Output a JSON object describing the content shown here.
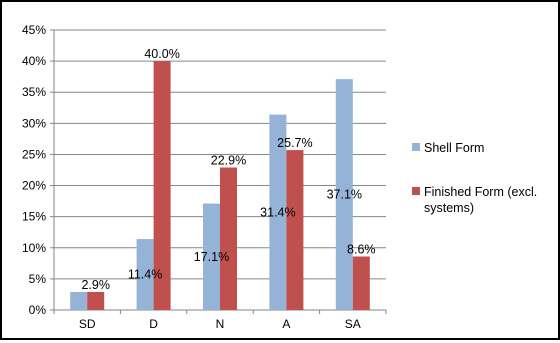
{
  "chart_data": {
    "type": "bar",
    "title": "",
    "xlabel": "",
    "ylabel": "",
    "categories": [
      "SD",
      "D",
      "N",
      "A",
      "SA"
    ],
    "ylim": [
      0,
      45
    ],
    "ytick_step": 5,
    "ytick_labels": [
      "0%",
      "5%",
      "10%",
      "15%",
      "20%",
      "25%",
      "30%",
      "35%",
      "40%",
      "45%"
    ],
    "grid": true,
    "legend": "right",
    "series": [
      {
        "name": "Shell Form",
        "color": "#95B3D7",
        "values": [
          2.9,
          11.4,
          17.1,
          31.4,
          37.1
        ],
        "labels": [
          "",
          "11.4%",
          "17.1%",
          "31.4%",
          "37.1%"
        ]
      },
      {
        "name": "Finished Form (excl. systems)",
        "name_lines": [
          "Finished Form (excl.",
          "systems)"
        ],
        "color": "#C0504D",
        "values": [
          2.9,
          40.0,
          22.9,
          25.7,
          8.6
        ],
        "labels": [
          "2.9%",
          "40.0%",
          "22.9%",
          "25.7%",
          "8.6%"
        ]
      }
    ]
  }
}
